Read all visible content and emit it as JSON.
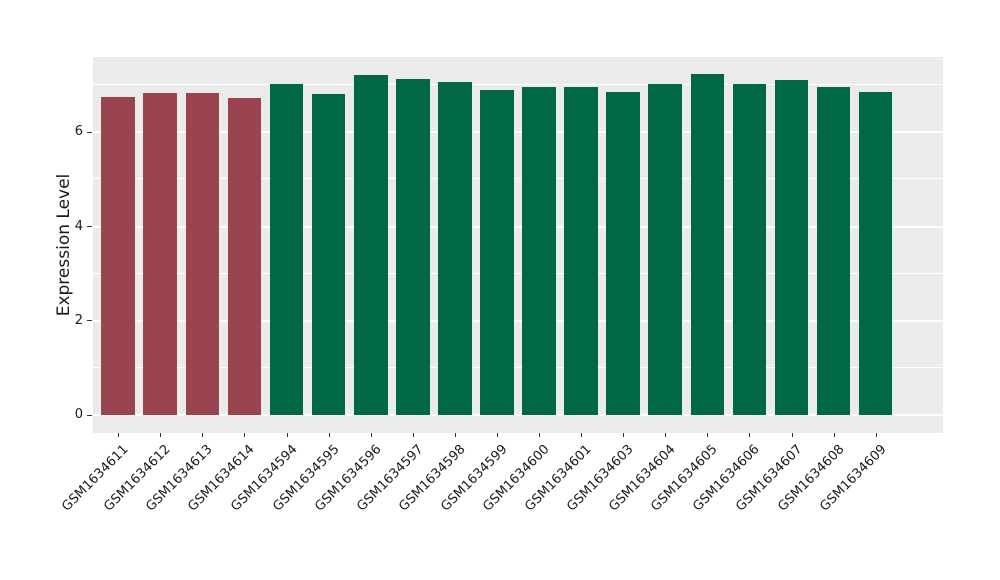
{
  "figure": {
    "background": "#FFFFFF"
  },
  "panel": {
    "background": "#EBEBEB",
    "grid_color": "#FFFFFF",
    "tick_color": "#333333",
    "text_color": "#1A1A1A"
  },
  "colors": {
    "highlight_red": "#9A4450",
    "sample_green": "#006747"
  },
  "chart_data": {
    "type": "bar",
    "title": "",
    "xlabel": "",
    "ylabel": "Expression Level",
    "ylim": [
      0,
      7.6
    ],
    "yticks": [
      0,
      2,
      4,
      6
    ],
    "minor_gridlines": [
      1,
      3,
      5,
      7
    ],
    "grid": true,
    "legend": "none",
    "categories": [
      "GSM1634611",
      "GSM1634612",
      "GSM1634613",
      "GSM1634614",
      "GSM1634594",
      "GSM1634595",
      "GSM1634596",
      "GSM1634597",
      "GSM1634598",
      "GSM1634599",
      "GSM1634600",
      "GSM1634601",
      "GSM1634603",
      "GSM1634604",
      "GSM1634605",
      "GSM1634606",
      "GSM1634607",
      "GSM1634608",
      "GSM1634609"
    ],
    "values": [
      6.76,
      6.83,
      6.83,
      6.74,
      7.02,
      6.82,
      7.22,
      7.13,
      7.06,
      6.91,
      6.97,
      6.96,
      6.86,
      7.02,
      7.23,
      7.02,
      7.12,
      6.97,
      6.86
    ],
    "bar_colors": [
      "#9A4450",
      "#9A4450",
      "#9A4450",
      "#9A4450",
      "#006747",
      "#006747",
      "#006747",
      "#006747",
      "#006747",
      "#006747",
      "#006747",
      "#006747",
      "#006747",
      "#006747",
      "#006747",
      "#006747",
      "#006747",
      "#006747",
      "#006747"
    ]
  }
}
